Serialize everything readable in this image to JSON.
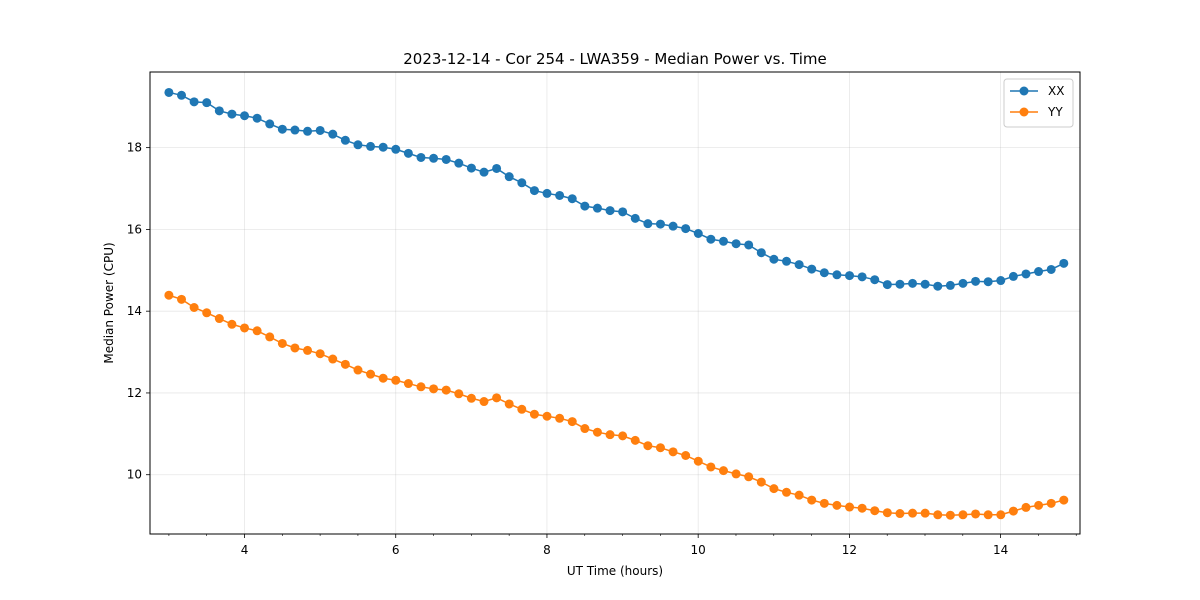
{
  "chart_data": {
    "type": "line",
    "title": "2023-12-14 - Cor 254 - LWA359 - Median Power vs. Time",
    "xlabel": "UT Time (hours)",
    "ylabel": "Median Power (CPU)",
    "xlim": [
      2.75,
      15.05
    ],
    "ylim": [
      8.55,
      19.85
    ],
    "xticks": [
      4,
      6,
      8,
      10,
      12,
      14
    ],
    "xtick_labels": [
      "4",
      "6",
      "8",
      "10",
      "12",
      "14"
    ],
    "yticks": [
      10,
      12,
      14,
      16,
      18
    ],
    "ytick_labels": [
      "10",
      "12",
      "14",
      "16",
      "18"
    ],
    "grid": true,
    "legend_position": "top-right",
    "x_start": 3.0,
    "x_step": 0.1667,
    "series": [
      {
        "name": "XX",
        "color": "#1f77b4",
        "marker": "circle",
        "values": [
          19.35,
          19.28,
          19.12,
          19.1,
          18.9,
          18.82,
          18.78,
          18.72,
          18.58,
          18.45,
          18.43,
          18.4,
          18.42,
          18.33,
          18.18,
          18.07,
          18.03,
          18.01,
          17.96,
          17.86,
          17.76,
          17.74,
          17.71,
          17.62,
          17.5,
          17.4,
          17.49,
          17.29,
          17.14,
          16.95,
          16.88,
          16.83,
          16.75,
          16.57,
          16.52,
          16.46,
          16.43,
          16.27,
          16.14,
          16.13,
          16.08,
          16.02,
          15.9,
          15.76,
          15.71,
          15.65,
          15.62,
          15.43,
          15.27,
          15.22,
          15.14,
          15.03,
          14.94,
          14.89,
          14.87,
          14.84,
          14.77,
          14.65,
          14.66,
          14.68,
          14.66,
          14.61,
          14.63,
          14.68,
          14.73,
          14.72,
          14.75,
          14.85,
          14.91,
          14.97,
          15.02,
          15.17
        ]
      },
      {
        "name": "YY",
        "color": "#ff7f0e",
        "marker": "circle",
        "values": [
          14.39,
          14.29,
          14.09,
          13.96,
          13.82,
          13.68,
          13.59,
          13.52,
          13.37,
          13.21,
          13.1,
          13.04,
          12.96,
          12.83,
          12.7,
          12.56,
          12.46,
          12.36,
          12.31,
          12.23,
          12.15,
          12.1,
          12.07,
          11.98,
          11.87,
          11.79,
          11.88,
          11.73,
          11.6,
          11.48,
          11.43,
          11.38,
          11.3,
          11.13,
          11.04,
          10.98,
          10.95,
          10.84,
          10.71,
          10.66,
          10.56,
          10.47,
          10.33,
          10.19,
          10.1,
          10.02,
          9.95,
          9.82,
          9.66,
          9.57,
          9.5,
          9.38,
          9.3,
          9.25,
          9.21,
          9.18,
          9.12,
          9.07,
          9.05,
          9.06,
          9.06,
          9.02,
          9.01,
          9.02,
          9.04,
          9.02,
          9.02,
          9.11,
          9.2,
          9.25,
          9.3,
          9.38
        ]
      }
    ]
  }
}
